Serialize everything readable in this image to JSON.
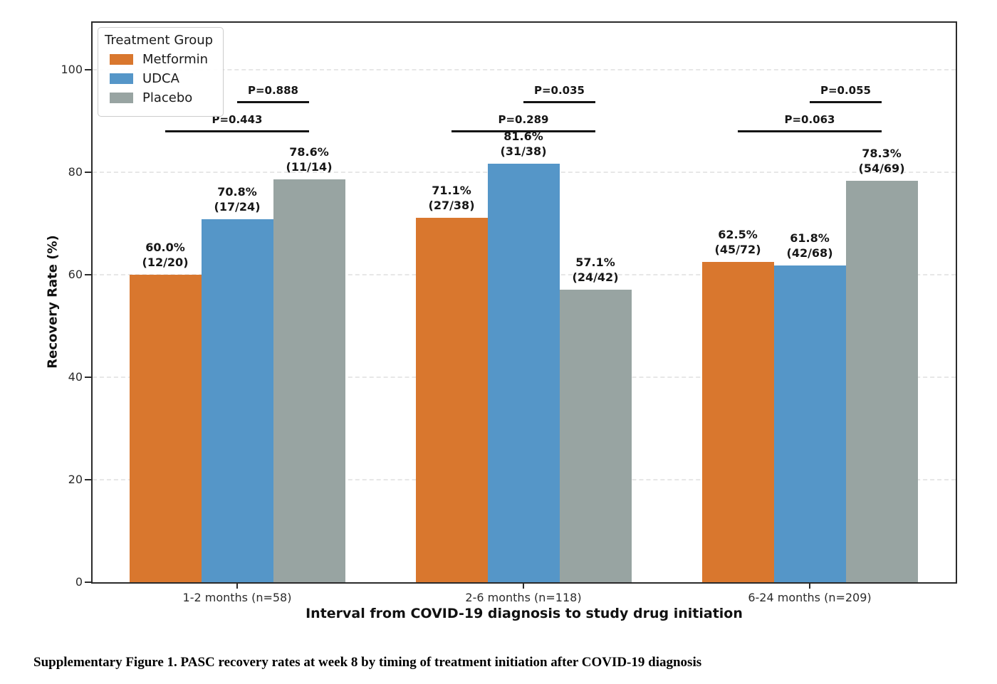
{
  "figure": {
    "caption": "Supplementary Figure 1. PASC recovery rates at week 8 by timing of treatment initiation after COVID-19 diagnosis"
  },
  "chart_data": {
    "type": "bar",
    "title": "",
    "xlabel": "Interval from COVID-19 diagnosis to study drug initiation",
    "ylabel": "Recovery Rate (%)",
    "ylim": [
      0,
      109
    ],
    "yticks": [
      0,
      20,
      40,
      60,
      80,
      100
    ],
    "grid": "horizontal dashed",
    "legend": {
      "title": "Treatment Group",
      "position": "upper left"
    },
    "categories": [
      "1-2 months (n=58)",
      "2-6 months (n=118)",
      "6-24 months (n=209)"
    ],
    "series": [
      {
        "name": "Metformin",
        "color": "#D9772E",
        "values": [
          60.0,
          71.1,
          62.5
        ],
        "counts": [
          "12/20",
          "27/38",
          "45/72"
        ]
      },
      {
        "name": "UDCA",
        "color": "#5596C8",
        "values": [
          70.8,
          81.6,
          61.8
        ],
        "counts": [
          "17/24",
          "31/38",
          "42/68"
        ]
      },
      {
        "name": "Placebo",
        "color": "#98A4A2",
        "values": [
          78.6,
          57.1,
          78.3
        ],
        "counts": [
          "11/14",
          "24/42",
          "54/69"
        ]
      }
    ],
    "comparisons": [
      {
        "category_index": 0,
        "between": [
          "Metformin",
          "Placebo"
        ],
        "p_label": "P=0.443",
        "tier": "lower"
      },
      {
        "category_index": 0,
        "between": [
          "UDCA",
          "Placebo"
        ],
        "p_label": "P=0.888",
        "tier": "upper"
      },
      {
        "category_index": 1,
        "between": [
          "Metformin",
          "Placebo"
        ],
        "p_label": "P=0.289",
        "tier": "lower"
      },
      {
        "category_index": 1,
        "between": [
          "UDCA",
          "Placebo"
        ],
        "p_label": "P=0.035",
        "tier": "upper"
      },
      {
        "category_index": 2,
        "between": [
          "Metformin",
          "Placebo"
        ],
        "p_label": "P=0.063",
        "tier": "lower"
      },
      {
        "category_index": 2,
        "between": [
          "UDCA",
          "Placebo"
        ],
        "p_label": "P=0.055",
        "tier": "upper"
      }
    ]
  }
}
